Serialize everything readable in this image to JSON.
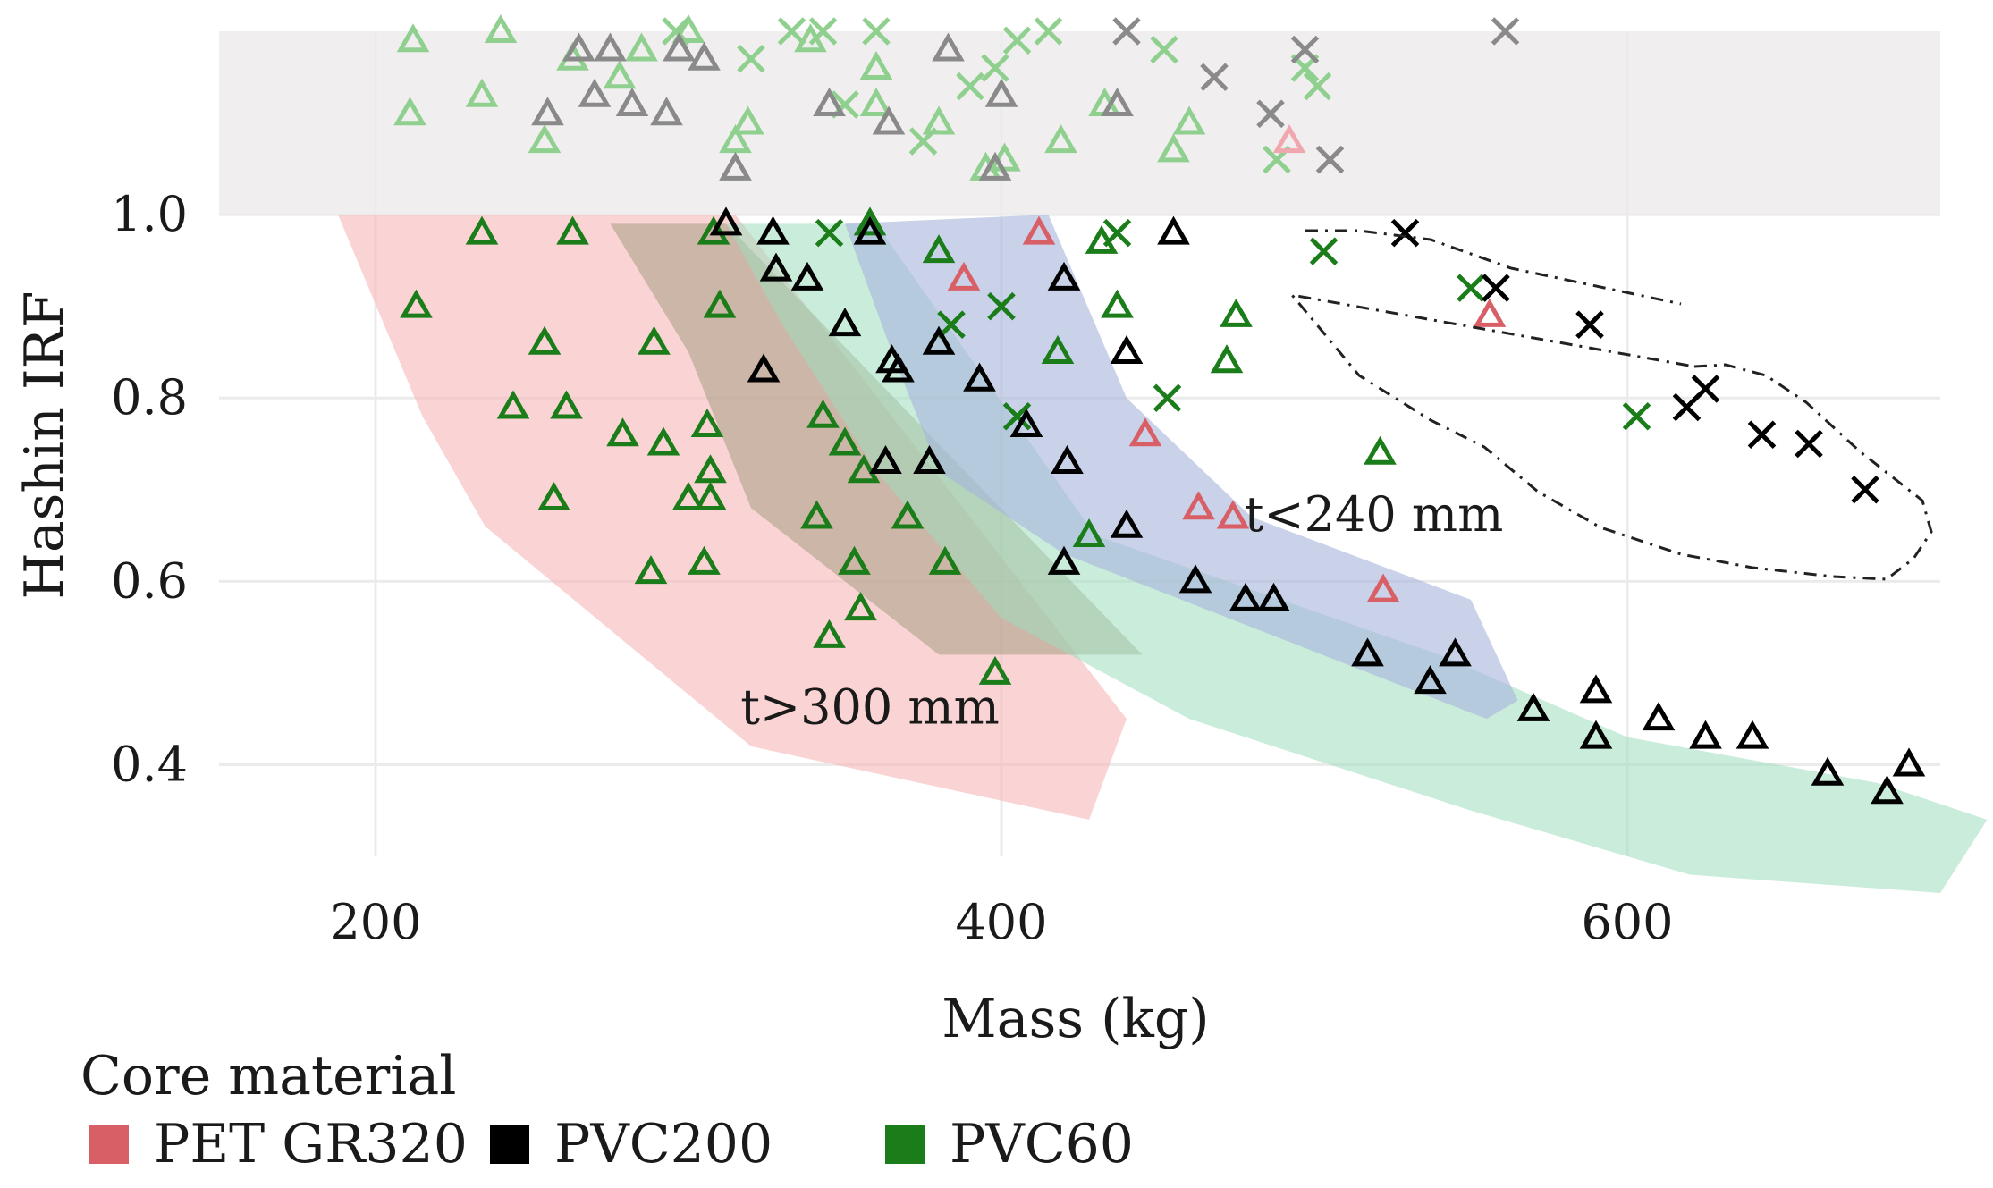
{
  "chart_data": {
    "type": "scatter",
    "title": "",
    "xlabel": "Mass (kg)",
    "ylabel": "Hashin IRF",
    "xlim": [
      150,
      700
    ],
    "ylim": [
      0.3,
      1.2
    ],
    "xticks": [
      200,
      400,
      600
    ],
    "yticks": [
      0.4,
      0.6,
      0.8,
      1.0
    ],
    "xtick_labels": [
      "200",
      "400",
      "600"
    ],
    "ytick_labels": [
      "0.4",
      "0.6",
      "0.8",
      "1.0"
    ],
    "grid": true,
    "infeasible_band": {
      "from": 1.0,
      "to": 1.2,
      "color": "#f1eef0"
    },
    "legend": {
      "title": "Core material",
      "position": "bottom-left",
      "entries": [
        {
          "label": "PET GR320",
          "color": "#d95f67"
        },
        {
          "label": "PVC200",
          "color": "#000000"
        },
        {
          "label": "PVC60",
          "color": "#1a7d1a"
        }
      ]
    },
    "colors": {
      "PET GR320": "#d95f67",
      "PVC200": "#000000",
      "PVC60": "#1a7d1a",
      "PET GR320-faded": "#f0a8ae",
      "PVC200-faded": "#8a8a8a",
      "PVC60-faded": "#8fd08f"
    },
    "regions": [
      {
        "name": "red-region",
        "color": "#f7b8b8",
        "opacity": 0.6,
        "polygon": [
          [
            188,
            1.0
          ],
          [
            315,
            1.0
          ],
          [
            440,
            0.45
          ],
          [
            428,
            0.34
          ],
          [
            320,
            0.42
          ],
          [
            235,
            0.66
          ],
          [
            215,
            0.78
          ]
        ]
      },
      {
        "name": "olive-region",
        "color": "#a69c82",
        "opacity": 0.55,
        "polygon": [
          [
            275,
            0.99
          ],
          [
            312,
            0.99
          ],
          [
            445,
            0.52
          ],
          [
            380,
            0.52
          ],
          [
            320,
            0.68
          ],
          [
            300,
            0.85
          ]
        ]
      },
      {
        "name": "green-region",
        "color": "#9fdcbe",
        "opacity": 0.55,
        "polygon": [
          [
            312,
            0.99
          ],
          [
            360,
            0.99
          ],
          [
            430,
            0.65
          ],
          [
            540,
            0.52
          ],
          [
            600,
            0.43
          ],
          [
            680,
            0.38
          ],
          [
            715,
            0.34
          ],
          [
            700,
            0.26
          ],
          [
            620,
            0.28
          ],
          [
            550,
            0.35
          ],
          [
            460,
            0.45
          ],
          [
            400,
            0.56
          ],
          [
            360,
            0.72
          ],
          [
            330,
            0.88
          ]
        ]
      },
      {
        "name": "blue-region",
        "color": "#a6b4dc",
        "opacity": 0.6,
        "polygon": [
          [
            350,
            0.99
          ],
          [
            415,
            1.0
          ],
          [
            440,
            0.8
          ],
          [
            480,
            0.67
          ],
          [
            550,
            0.58
          ],
          [
            565,
            0.47
          ],
          [
            555,
            0.45
          ],
          [
            480,
            0.55
          ],
          [
            420,
            0.63
          ],
          [
            380,
            0.72
          ],
          [
            365,
            0.85
          ]
        ]
      }
    ],
    "annotations": [
      {
        "name": "annot-t-less-240",
        "text": "t<240 mm",
        "x": 519,
        "y": 0.655
      },
      {
        "name": "annot-t-greater-300",
        "text": "t>300 mm",
        "x": 358,
        "y": 0.445
      }
    ],
    "dashed_regions": [
      {
        "name": "crosses-outline",
        "polygon": [
          [
            500,
            0.98
          ],
          [
            530,
            0.98
          ],
          [
            575,
            0.96
          ],
          [
            608,
            0.9
          ],
          [
            575,
            0.98
          ]
        ]
      }
    ],
    "series": [
      {
        "name": "PVC60",
        "marker": "triangle",
        "color": "PVC60",
        "points": [
          [
            213,
            0.9
          ],
          [
            234,
            0.98
          ],
          [
            244,
            0.79
          ],
          [
            254,
            0.86
          ],
          [
            257,
            0.69
          ],
          [
            261,
            0.79
          ],
          [
            263,
            0.98
          ],
          [
            279,
            0.76
          ],
          [
            288,
            0.61
          ],
          [
            289,
            0.86
          ],
          [
            292,
            0.75
          ],
          [
            300,
            0.69
          ],
          [
            305,
            0.62
          ],
          [
            306,
            0.77
          ],
          [
            307,
            0.69
          ],
          [
            307,
            0.72
          ],
          [
            310,
            0.9
          ],
          [
            308,
            0.98
          ],
          [
            341,
            0.67
          ],
          [
            343,
            0.78
          ],
          [
            345,
            0.54
          ],
          [
            350,
            0.75
          ],
          [
            353,
            0.62
          ],
          [
            355,
            0.57
          ],
          [
            356,
            0.72
          ],
          [
            358,
            0.99
          ],
          [
            370,
            0.67
          ],
          [
            382,
            0.62
          ],
          [
            380,
            0.96
          ],
          [
            398,
            0.5
          ],
          [
            418,
            0.85
          ],
          [
            428,
            0.65
          ],
          [
            432,
            0.97
          ],
          [
            437,
            0.9
          ],
          [
            472,
            0.84
          ],
          [
            475,
            0.89
          ],
          [
            521,
            0.74
          ]
        ]
      },
      {
        "name": "PVC60",
        "marker": "x",
        "color": "PVC60",
        "points": [
          [
            345,
            0.98
          ],
          [
            384,
            0.88
          ],
          [
            400,
            0.9
          ],
          [
            405,
            0.78
          ],
          [
            437,
            0.98
          ],
          [
            453,
            0.8
          ],
          [
            503,
            0.96
          ],
          [
            550,
            0.92
          ],
          [
            603,
            0.78
          ]
        ]
      },
      {
        "name": "PVC200",
        "marker": "triangle",
        "color": "PVC200",
        "points": [
          [
            312,
            0.99
          ],
          [
            324,
            0.83
          ],
          [
            327,
            0.98
          ],
          [
            328,
            0.94
          ],
          [
            338,
            0.93
          ],
          [
            350,
            0.88
          ],
          [
            358,
            0.98
          ],
          [
            363,
            0.73
          ],
          [
            365,
            0.84
          ],
          [
            367,
            0.83
          ],
          [
            380,
            0.86
          ],
          [
            377,
            0.73
          ],
          [
            393,
            0.82
          ],
          [
            408,
            0.77
          ],
          [
            421,
            0.73
          ],
          [
            420,
            0.62
          ],
          [
            420,
            0.93
          ],
          [
            440,
            0.85
          ],
          [
            440,
            0.66
          ],
          [
            455,
            0.98
          ],
          [
            462,
            0.6
          ],
          [
            478,
            0.58
          ],
          [
            487,
            0.58
          ],
          [
            517,
            0.52
          ],
          [
            537,
            0.49
          ],
          [
            545,
            0.52
          ],
          [
            570,
            0.46
          ],
          [
            590,
            0.48
          ],
          [
            590,
            0.43
          ],
          [
            610,
            0.45
          ],
          [
            625,
            0.43
          ],
          [
            640,
            0.43
          ],
          [
            664,
            0.39
          ],
          [
            683,
            0.37
          ],
          [
            690,
            0.4
          ]
        ]
      },
      {
        "name": "PVC200",
        "marker": "x",
        "color": "PVC200",
        "points": [
          [
            529,
            0.98
          ],
          [
            558,
            0.92
          ],
          [
            588,
            0.88
          ],
          [
            619,
            0.79
          ],
          [
            625,
            0.81
          ],
          [
            643,
            0.76
          ],
          [
            658,
            0.75
          ],
          [
            676,
            0.7
          ]
        ]
      },
      {
        "name": "PET GR320",
        "marker": "triangle",
        "color": "PET GR320",
        "points": [
          [
            388,
            0.93
          ],
          [
            412,
            0.98
          ],
          [
            446,
            0.76
          ],
          [
            463,
            0.68
          ],
          [
            474,
            0.67
          ],
          [
            522,
            0.59
          ],
          [
            556,
            0.89
          ]
        ]
      },
      {
        "name": "PVC60 (IRF>1)",
        "marker": "triangle",
        "color": "PVC60-faded",
        "points": [
          [
            211,
            1.11
          ],
          [
            212,
            1.19
          ],
          [
            234,
            1.13
          ],
          [
            240,
            1.2
          ],
          [
            254,
            1.08
          ],
          [
            263,
            1.17
          ],
          [
            278,
            1.15
          ],
          [
            285,
            1.18
          ],
          [
            300,
            1.2
          ],
          [
            315,
            1.08
          ],
          [
            319,
            1.1
          ],
          [
            339,
            1.19
          ],
          [
            360,
            1.16
          ],
          [
            360,
            1.12
          ],
          [
            380,
            1.1
          ],
          [
            395,
            1.05
          ],
          [
            401,
            1.06
          ],
          [
            419,
            1.08
          ],
          [
            433,
            1.12
          ],
          [
            455,
            1.07
          ],
          [
            460,
            1.1
          ]
        ]
      },
      {
        "name": "PVC60 (IRF>1)",
        "marker": "x",
        "color": "PVC60-faded",
        "points": [
          [
            296,
            1.2
          ],
          [
            320,
            1.17
          ],
          [
            333,
            1.2
          ],
          [
            343,
            1.2
          ],
          [
            350,
            1.12
          ],
          [
            360,
            1.2
          ],
          [
            375,
            1.08
          ],
          [
            390,
            1.14
          ],
          [
            398,
            1.16
          ],
          [
            405,
            1.19
          ],
          [
            415,
            1.2
          ],
          [
            452,
            1.18
          ],
          [
            488,
            1.06
          ],
          [
            497,
            1.16
          ],
          [
            501,
            1.14
          ]
        ]
      },
      {
        "name": "PVC200 (IRF>1)",
        "marker": "triangle",
        "color": "PVC200-faded",
        "points": [
          [
            255,
            1.11
          ],
          [
            265,
            1.18
          ],
          [
            270,
            1.13
          ],
          [
            275,
            1.18
          ],
          [
            282,
            1.12
          ],
          [
            293,
            1.11
          ],
          [
            297,
            1.18
          ],
          [
            305,
            1.17
          ],
          [
            315,
            1.05
          ],
          [
            345,
            1.12
          ],
          [
            364,
            1.1
          ],
          [
            383,
            1.18
          ],
          [
            398,
            1.05
          ],
          [
            400,
            1.13
          ],
          [
            437,
            1.12
          ]
        ]
      },
      {
        "name": "PVC200 (IRF>1)",
        "marker": "x",
        "color": "PVC200-faded",
        "points": [
          [
            440,
            1.2
          ],
          [
            468,
            1.15
          ],
          [
            486,
            1.11
          ],
          [
            497,
            1.18
          ],
          [
            505,
            1.06
          ],
          [
            561,
            1.2
          ]
        ]
      },
      {
        "name": "PET GR320 (IRF>1)",
        "marker": "triangle",
        "color": "PET GR320-faded",
        "points": [
          [
            492,
            1.08
          ]
        ]
      }
    ]
  }
}
